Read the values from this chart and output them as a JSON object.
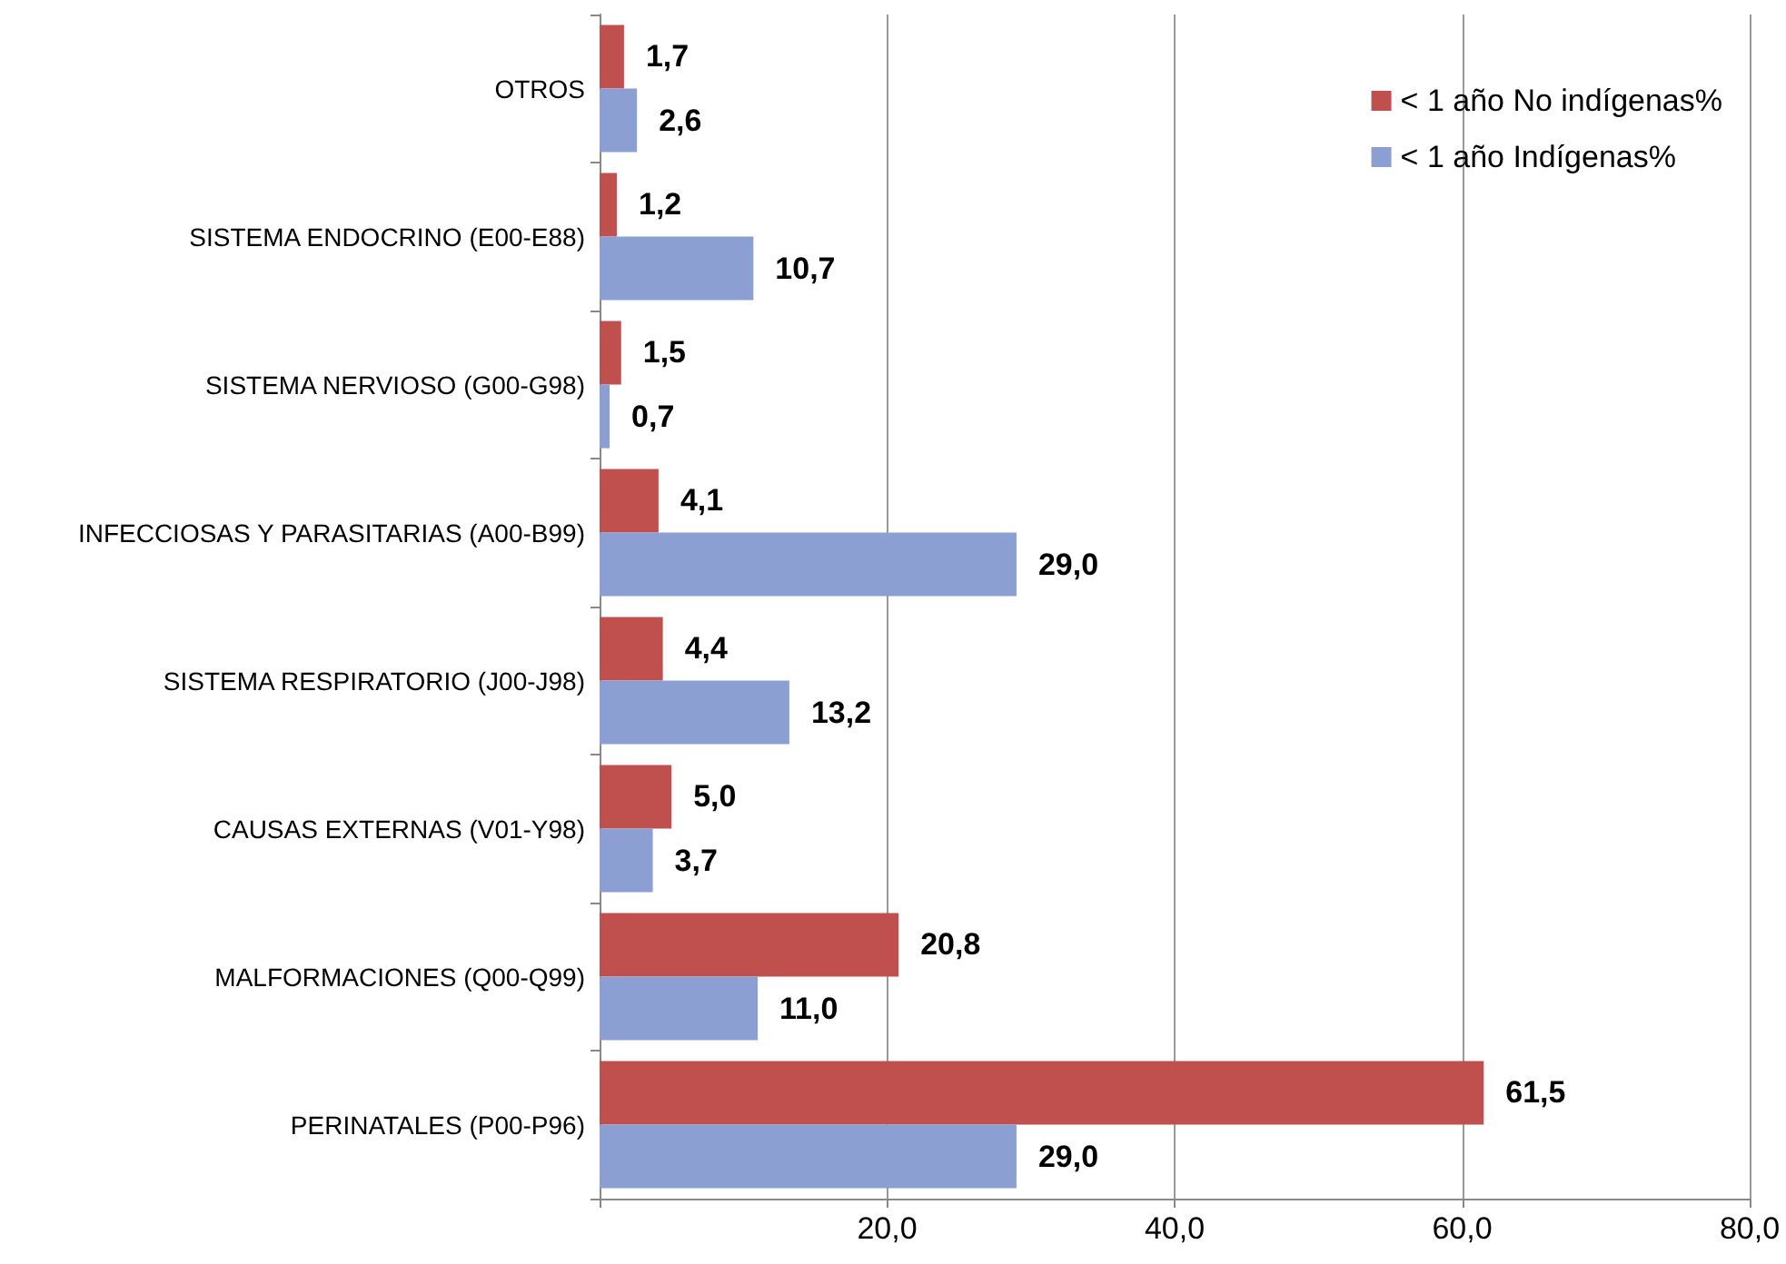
{
  "chart_data": {
    "type": "bar",
    "orientation": "horizontal",
    "categories": [
      "OTROS",
      "SISTEMA ENDOCRINO (E00-E88)",
      "SISTEMA NERVIOSO (G00-G98)",
      "INFECCIOSAS Y PARASITARIAS (A00-B99)",
      "SISTEMA RESPIRATORIO (J00-J98)",
      "CAUSAS EXTERNAS (V01-Y98)",
      "MALFORMACIONES (Q00-Q99)",
      "PERINATALES (P00-P96)"
    ],
    "series": [
      {
        "name": "< 1 año No indígenas%",
        "color": "#c0504d",
        "values": [
          1.7,
          1.2,
          1.5,
          4.1,
          4.4,
          5.0,
          20.8,
          61.5
        ],
        "value_labels": [
          "1,7",
          "1,2",
          "1,5",
          "4,1",
          "4,4",
          "5,0",
          "20,8",
          "61,5"
        ]
      },
      {
        "name": "< 1 año Indígenas%",
        "color": "#8c9fd3",
        "values": [
          2.6,
          10.7,
          0.7,
          29.0,
          13.2,
          3.7,
          11.0,
          29.0
        ],
        "value_labels": [
          "2,6",
          "10,7",
          "0,7",
          "29,0",
          "13,2",
          "3,7",
          "11,0",
          "29,0"
        ]
      }
    ],
    "xlim": [
      0,
      80
    ],
    "xticks": [
      {
        "value": 0,
        "label": null
      },
      {
        "value": 20,
        "label": "20,0"
      },
      {
        "value": 40,
        "label": "40,0"
      },
      {
        "value": 60,
        "label": "60,0"
      },
      {
        "value": 80,
        "label": "80,0"
      }
    ],
    "grid": "x",
    "legend": "top right"
  }
}
